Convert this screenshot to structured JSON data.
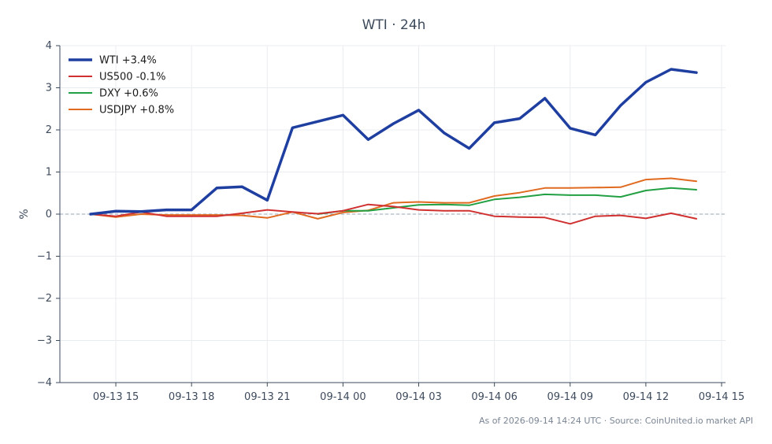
{
  "chart_data": {
    "type": "line",
    "title": "WTI · 24h",
    "xlabel": "",
    "ylabel": "%",
    "ylim": [
      -4,
      4
    ],
    "yticks": [
      -4,
      -3,
      -2,
      -1,
      0,
      1,
      2,
      3,
      4
    ],
    "ytick_labels": [
      "−4",
      "−3",
      "−2",
      "−1",
      "0",
      "1",
      "2",
      "3",
      "4"
    ],
    "x_range": [
      "2026-09-13 14:00",
      "2026-09-14 15:00"
    ],
    "xtick_labels": [
      "09-13 15",
      "09-13 18",
      "09-13 21",
      "09-14 00",
      "09-14 03",
      "09-14 06",
      "09-14 09",
      "09-14 12",
      "09-14 15"
    ],
    "xtick_values": [
      "2026-09-13 15:00",
      "2026-09-13 18:00",
      "2026-09-13 21:00",
      "2026-09-14 00:00",
      "2026-09-14 03:00",
      "2026-09-14 06:00",
      "2026-09-14 09:00",
      "2026-09-14 12:00",
      "2026-09-14 15:00"
    ],
    "x": [
      "2026-09-13 14:00",
      "2026-09-13 15:00",
      "2026-09-13 16:00",
      "2026-09-13 17:00",
      "2026-09-13 18:00",
      "2026-09-13 19:00",
      "2026-09-13 20:00",
      "2026-09-13 21:00",
      "2026-09-13 22:00",
      "2026-09-13 23:00",
      "2026-09-14 00:00",
      "2026-09-14 01:00",
      "2026-09-14 02:00",
      "2026-09-14 03:00",
      "2026-09-14 04:00",
      "2026-09-14 05:00",
      "2026-09-14 06:00",
      "2026-09-14 07:00",
      "2026-09-14 08:00",
      "2026-09-14 09:00",
      "2026-09-14 10:00",
      "2026-09-14 11:00",
      "2026-09-14 12:00",
      "2026-09-14 13:00",
      "2026-09-14 14:00"
    ],
    "series": [
      {
        "name": "WTI +3.4%",
        "color": "#1f3fa0",
        "width": 3.5,
        "values": [
          0.0,
          0.07,
          0.06,
          0.1,
          0.1,
          0.62,
          0.65,
          0.33,
          2.05,
          2.2,
          2.35,
          1.77,
          2.15,
          2.47,
          1.93,
          1.56,
          2.17,
          2.27,
          2.75,
          2.04,
          1.88,
          2.58,
          3.13,
          3.44,
          3.36
        ]
      },
      {
        "name": "US500 -0.1%",
        "color": "#d03030",
        "width": 2,
        "values": [
          0.0,
          -0.05,
          0.05,
          -0.05,
          -0.05,
          -0.05,
          0.02,
          0.1,
          0.05,
          0.01,
          0.08,
          0.23,
          0.18,
          0.1,
          0.08,
          0.08,
          -0.05,
          -0.07,
          -0.08,
          -0.23,
          -0.05,
          -0.03,
          -0.1,
          0.02,
          -0.11
        ]
      },
      {
        "name": "DXY +0.6%",
        "color": "#22a043",
        "width": 2,
        "values": [
          null,
          null,
          null,
          null,
          null,
          null,
          null,
          null,
          null,
          0.0,
          0.08,
          0.08,
          0.15,
          0.22,
          0.23,
          0.21,
          0.35,
          0.4,
          0.47,
          0.45,
          0.45,
          0.41,
          0.56,
          0.62,
          0.58
        ]
      },
      {
        "name": "USDJPY +0.8%",
        "color": "#e06a20",
        "width": 2,
        "values": [
          0.0,
          -0.07,
          0.0,
          -0.02,
          -0.02,
          -0.02,
          -0.03,
          -0.09,
          0.05,
          -0.11,
          0.04,
          0.09,
          0.27,
          0.29,
          0.27,
          0.27,
          0.43,
          0.51,
          0.62,
          0.62,
          0.63,
          0.64,
          0.82,
          0.85,
          0.78
        ]
      }
    ],
    "legend_position": "top-left",
    "grid": true,
    "zero_line": "dashed"
  },
  "footer": {
    "source_note": "As of 2026-09-14 14:24 UTC · Source: CoinUnited.io market API"
  }
}
